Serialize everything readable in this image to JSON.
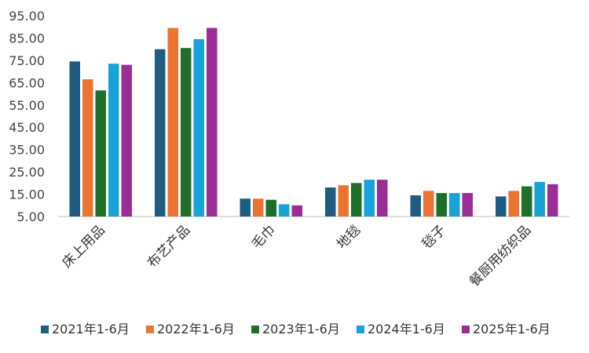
{
  "chart_data": {
    "type": "bar",
    "title": "",
    "xlabel": "",
    "ylabel": "",
    "categories": [
      "床上用品",
      "布艺产品",
      "毛巾",
      "地毯",
      "毯子",
      "餐厨用纺织品"
    ],
    "series": [
      {
        "name": "2021年1-6月",
        "color": "#1f5c82",
        "values": [
          74.5,
          80.0,
          13.0,
          18.0,
          14.5,
          14.0
        ]
      },
      {
        "name": "2022年1-6月",
        "color": "#ec7432",
        "values": [
          66.5,
          89.5,
          13.0,
          19.0,
          16.5,
          16.5
        ]
      },
      {
        "name": "2023年1-6月",
        "color": "#1d6f2a",
        "values": [
          61.5,
          80.5,
          12.5,
          20.0,
          15.5,
          18.5
        ]
      },
      {
        "name": "2024年1-6月",
        "color": "#17a2d8",
        "values": [
          73.5,
          84.5,
          10.5,
          21.5,
          15.5,
          20.5
        ]
      },
      {
        "name": "2025年1-6月",
        "color": "#9b2d96",
        "values": [
          73.0,
          89.5,
          10.0,
          21.5,
          15.5,
          19.5
        ]
      }
    ],
    "ylim": [
      5,
      95
    ],
    "yticks": [
      "5.00",
      "15.00",
      "25.00",
      "35.00",
      "45.00",
      "55.00",
      "65.00",
      "75.00",
      "85.00",
      "95.00"
    ],
    "grid": false,
    "legend_position": "bottom"
  }
}
